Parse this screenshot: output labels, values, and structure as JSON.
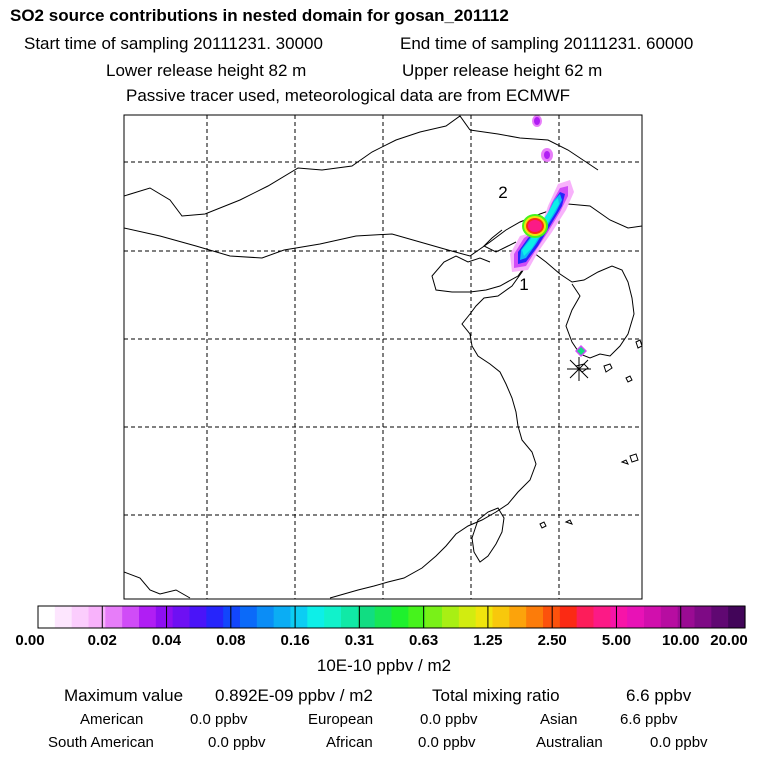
{
  "header": {
    "title": "SO2 source contributions in nested domain for gosan_201112",
    "start_time": "Start time of sampling 20111231. 30000",
    "end_time": "End time of sampling 20111231. 60000",
    "lower_height": "Lower release height   82 m",
    "upper_height": "Upper release height   62 m",
    "note": "Passive tracer used, meteorological data are from ECMWF"
  },
  "map": {
    "labels": [
      "2",
      "1"
    ],
    "receptor": "gosan-station-star"
  },
  "colorbar": {
    "ticks": [
      "0.00",
      "0.02",
      "0.04",
      "0.08",
      "0.16",
      "0.31",
      "0.63",
      "1.25",
      "2.50",
      "5.00",
      "10.00",
      "20.00"
    ],
    "units": "10E-10 ppbv / m2",
    "colors": [
      "#ffffff",
      "#fde6fe",
      "#fbcdfd",
      "#f8b2fb",
      "#e77df9",
      "#d04cf7",
      "#b01ef4",
      "#8e0ff1",
      "#6e10f3",
      "#4a14f8",
      "#2625fb",
      "#1246fc",
      "#0b6af9",
      "#0b8df6",
      "#0badf4",
      "#0ccdf3",
      "#0defe8",
      "#11f2cb",
      "#10e9a6",
      "#11dd82",
      "#17e657",
      "#1ef12d",
      "#46f31c",
      "#79f118",
      "#a8ef14",
      "#d2ec10",
      "#f0e50d",
      "#f8c80c",
      "#fca30b",
      "#fc7c0a",
      "#fc520c",
      "#fb2a14",
      "#fd1d5a",
      "#fc1a86",
      "#f714a8",
      "#e812b6",
      "#d10fad",
      "#b70da1",
      "#9a0b93",
      "#7e0a85",
      "#600872",
      "#420559"
    ]
  },
  "summary": {
    "max_label": "Maximum value",
    "max_value": "0.892E-09 ppbv / m2",
    "total_label": "Total mixing ratio",
    "total_value": "6.6 ppbv",
    "american_label": "American",
    "american_value": "0.0 ppbv",
    "european_label": "European",
    "european_value": "0.0 ppbv",
    "asian_label": "Asian",
    "asian_value": "6.6 ppbv",
    "south_american_label": "South American",
    "south_american_value": "0.0 ppbv",
    "african_label": "African",
    "african_value": "0.0 ppbv",
    "australian_label": "Australian",
    "australian_value": "0.0 ppbv"
  }
}
